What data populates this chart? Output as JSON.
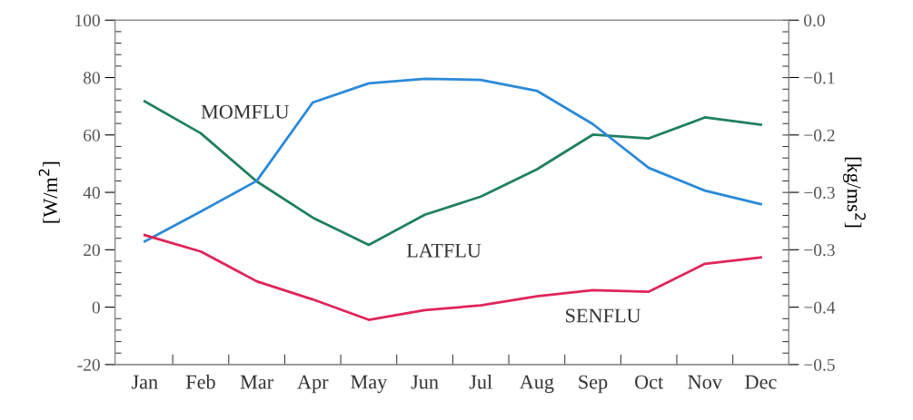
{
  "chart_data": {
    "type": "line",
    "categories": [
      "Jan",
      "Feb",
      "Mar",
      "Apr",
      "May",
      "Jun",
      "Jul",
      "Aug",
      "Sep",
      "Oct",
      "Nov",
      "Dec"
    ],
    "series": [
      {
        "color": "#1f8060",
        "values": [
          71.7,
          60.6,
          43.8,
          31.2,
          21.7,
          32.2,
          38.5,
          48.0,
          60.1,
          58.8,
          66.1,
          63.6
        ]
      },
      {
        "color": "#2a8ad8",
        "values": [
          22.9,
          33.3,
          44.0,
          71.3,
          78.0,
          79.6,
          79.2,
          75.4,
          63.8,
          48.5,
          40.6,
          35.9
        ]
      },
      {
        "color": "#e0245a",
        "values": [
          25.1,
          19.4,
          9.0,
          2.7,
          -4.4,
          -1.0,
          0.6,
          3.8,
          5.9,
          5.4,
          15.1,
          17.3
        ]
      }
    ],
    "ylabel": "[W/m$^{2}$]",
    "y2label": "[kg/ms$^{2}$]",
    "ylim": [
      -20,
      100
    ],
    "yticks": [
      -20,
      0,
      20,
      40,
      60,
      80,
      100
    ],
    "y2lim": [
      -0.5,
      0.0
    ],
    "y2ticks": [
      {
        "value": -0.5,
        "label": "−0.5"
      },
      {
        "value": -0.4167,
        "label": "−0.4"
      },
      {
        "value": -0.3333,
        "label": "−0.3"
      },
      {
        "value": -0.25,
        "label": "−0.3"
      },
      {
        "value": -0.1667,
        "label": "−0.2"
      },
      {
        "value": -0.0833,
        "label": "−0.1"
      },
      {
        "value": 0.0,
        "label": "0.0"
      }
    ],
    "annotations": [
      "MOMFLU",
      "LATFLU",
      "SENFLU"
    ],
    "grid": false,
    "legend": false,
    "marker": "none",
    "line_style": "solid"
  }
}
